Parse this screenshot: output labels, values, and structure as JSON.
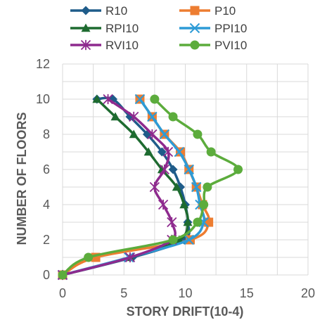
{
  "chart_data": {
    "type": "scatter",
    "xlabel": "STORY DRIFT(10-4)",
    "ylabel": "NUMBER OF FLOORS",
    "xlim": [
      0,
      20
    ],
    "ylim": [
      0,
      12
    ],
    "xticks": [
      "0",
      "5",
      "10",
      "15",
      "20"
    ],
    "yticks": [
      "0",
      "2",
      "4",
      "6",
      "8",
      "10",
      "12"
    ],
    "grid": true,
    "legend_position": "top",
    "series": [
      {
        "name": "R10",
        "color": "#1f5c8a",
        "marker": "diamond",
        "x": [
          0,
          5.7,
          9.9,
          10.2,
          10.0,
          9.6,
          9.0,
          8.1,
          6.9,
          5.5,
          4.1,
          2.8
        ],
        "y": [
          0,
          1,
          2,
          3,
          4,
          5,
          6,
          7,
          8,
          9,
          10,
          10
        ]
      },
      {
        "name": "P10",
        "color": "#ed7d31",
        "marker": "square",
        "x": [
          0,
          2.7,
          10.4,
          11.9,
          11.4,
          10.9,
          10.3,
          9.6,
          8.3,
          7.3,
          6.3
        ],
        "y": [
          0,
          1,
          2,
          3,
          4,
          5,
          6,
          7,
          8,
          9,
          10
        ]
      },
      {
        "name": "RPI10",
        "color": "#1e6b30",
        "marker": "triangle",
        "x": [
          0,
          5.5,
          9.5,
          10.2,
          9.9,
          9.3,
          8.1,
          7.0,
          5.8,
          4.3,
          2.8
        ],
        "y": [
          0,
          1,
          2,
          3,
          4,
          5,
          6,
          7,
          8,
          9,
          10
        ]
      },
      {
        "name": "PPI10",
        "color": "#2e9bd6",
        "marker": "x",
        "x": [
          0,
          5.4,
          10.3,
          11.5,
          11.2,
          10.9,
          10.3,
          9.5,
          8.3,
          7.3,
          6.3
        ],
        "y": [
          0,
          1,
          2,
          3,
          4,
          5,
          6,
          7,
          8,
          9,
          10
        ]
      },
      {
        "name": "RVI10",
        "color": "#8e2a8e",
        "marker": "star",
        "x": [
          0,
          5.5,
          8.9,
          8.9,
          8.2,
          7.5,
          8.3,
          8.6,
          7.3,
          5.8,
          3.7
        ],
        "y": [
          0,
          1,
          2,
          3,
          4,
          5,
          6,
          7,
          8,
          9,
          10
        ]
      },
      {
        "name": "PVI10",
        "color": "#5cac3c",
        "marker": "circle",
        "x": [
          0,
          2.1,
          9.0,
          11.0,
          11.5,
          11.8,
          14.3,
          12.1,
          11.0,
          9.0,
          7.5
        ],
        "y": [
          0,
          1,
          2,
          3,
          4,
          5,
          6,
          7,
          8,
          9,
          10
        ]
      }
    ]
  }
}
